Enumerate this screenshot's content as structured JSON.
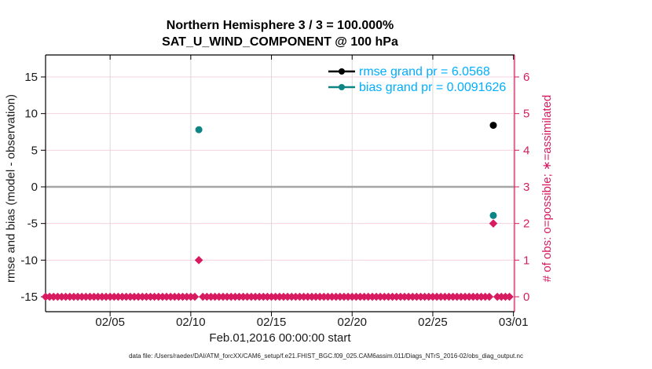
{
  "figure": {
    "title": "Northern Hemisphere 3 / 3 = 100.000%",
    "subtitle": "SAT_U_WIND_COMPONENT @ 100 hPa",
    "footnote": "data file: /Users/raeder/DAI/ATM_forcXX/CAM6_setup/f.e21.FHIST_BGC.f09_025.CAM6assim.011/Diags_NTrS_2016-02/obs_diag_output.nc"
  },
  "chart_data": {
    "type": "scatter",
    "title": "Northern Hemisphere 3 / 3 = 100.000%",
    "subtitle": "SAT_U_WIND_COMPONENT @ 100 hPa",
    "xlabel": "Feb.01,2016 00:00:00 start",
    "ylabel_left": "rmse and bias (model - observation)",
    "ylabel_right": "# of obs: o=possible; ∗=assimilated",
    "grand_rmse": 6.0568,
    "grand_bias": 0.0091626,
    "legend": {
      "entries": [
        {
          "label": "rmse grand pr = 6.0568",
          "marker_color": "#000000"
        },
        {
          "label": "bias grand pr = 0.0091626",
          "marker_color": "#0d8585"
        }
      ],
      "text_color": "#00aeff",
      "position": "upper-right-inside"
    },
    "x_axis": {
      "start_label": "Feb 01 2016",
      "ticks": [
        {
          "label": "02/05",
          "day": 4
        },
        {
          "label": "02/10",
          "day": 9
        },
        {
          "label": "02/15",
          "day": 14
        },
        {
          "label": "02/20",
          "day": 19
        },
        {
          "label": "02/25",
          "day": 24
        },
        {
          "label": "03/01",
          "day": 29
        }
      ],
      "range_days": [
        0,
        29.06
      ],
      "grid": true
    },
    "y_axis_left": {
      "ticks": [
        15,
        10,
        5,
        0,
        -5,
        -10,
        -15
      ],
      "range": [
        -17,
        18
      ],
      "zero_line": true
    },
    "y_axis_right": {
      "ticks": [
        6,
        5,
        4,
        3,
        2,
        1,
        0
      ],
      "range": [
        -0.4,
        6.6
      ],
      "grid": true
    },
    "series": [
      {
        "name": "rmse",
        "axis": "left",
        "marker": "circle",
        "color": "#000000",
        "points": [
          {
            "day": 27.75,
            "value": 8.4
          }
        ]
      },
      {
        "name": "bias",
        "axis": "left",
        "marker": "circle",
        "color": "#0d8585",
        "points": [
          {
            "day": 9.5,
            "value": 7.8
          },
          {
            "day": 27.75,
            "value": -3.9
          }
        ]
      }
    ],
    "obs_counts": {
      "axis": "right",
      "marker": "diamond-asterisk",
      "color": "#d81b60",
      "start_day": 0,
      "step_days": 0.25,
      "end_day": 28.75,
      "default_count": 0,
      "exceptions": [
        {
          "day": 9.5,
          "count": 1
        },
        {
          "day": 27.75,
          "count": 2
        }
      ]
    },
    "colors": {
      "pink": "#d81b60",
      "teal": "#0d8585",
      "black": "#000000",
      "legend_text": "#00aeff",
      "grid_vertical": "#d9d9d9",
      "grid_horizontal": "#f6d3e0",
      "zero_line": "#a6a6a6",
      "tick_label": "#1a1a1a"
    }
  }
}
